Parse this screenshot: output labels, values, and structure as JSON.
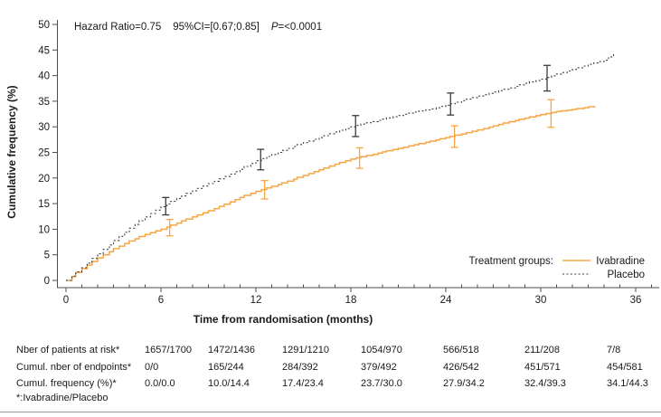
{
  "annotation": {
    "hazard_ratio": "Hazard Ratio=0.75",
    "ci": "95%CI=[0.67;0.85]",
    "p_label": "P",
    "p_value": "=<0.0001"
  },
  "chart_data": {
    "type": "line",
    "subtype": "kaplan-meier-cumulative-incidence",
    "xlabel": "Time from randomisation (months)",
    "ylabel": "Cumulative frequency (%)",
    "xlim": [
      0,
      36
    ],
    "ylim": [
      0,
      50
    ],
    "xticks": [
      0,
      6,
      12,
      18,
      24,
      30,
      36
    ],
    "x_minor_step": 1,
    "yticks": [
      0,
      5,
      10,
      15,
      20,
      25,
      30,
      35,
      40,
      45,
      50
    ],
    "grid": false,
    "legend_title": "Treatment groups:",
    "legend_position": "bottom-right-inside",
    "series": [
      {
        "name": "Ivabradine",
        "color": "#F7A646",
        "style": "solid",
        "x": [
          0,
          1,
          2,
          3,
          4,
          5,
          6,
          7,
          8,
          9,
          10,
          11,
          12,
          13,
          14,
          15,
          16,
          17,
          18,
          19,
          20,
          21,
          22,
          23,
          24,
          25,
          26,
          27,
          28,
          29,
          30,
          31,
          32,
          33.4
        ],
        "y": [
          0,
          2.3,
          4.4,
          6.2,
          7.7,
          9.0,
          10.0,
          11.2,
          12.4,
          13.6,
          14.9,
          16.2,
          17.4,
          18.4,
          19.4,
          20.5,
          21.6,
          22.7,
          23.7,
          24.4,
          25.1,
          25.8,
          26.5,
          27.2,
          27.9,
          28.6,
          29.4,
          30.2,
          31.0,
          31.7,
          32.4,
          33.0,
          33.4,
          34.1
        ]
      },
      {
        "name": "Placebo",
        "color": "#3b3b3b",
        "style": "dotted",
        "x": [
          0,
          1,
          2,
          3,
          4,
          5,
          6,
          7,
          8,
          9,
          10,
          11,
          12,
          13,
          14,
          15,
          16,
          17,
          18,
          19,
          20,
          21,
          22,
          23,
          24,
          25,
          26,
          27,
          28,
          29,
          30,
          31,
          32,
          33,
          34,
          34.6
        ],
        "y": [
          0,
          2.5,
          5.2,
          7.8,
          10.2,
          12.4,
          14.4,
          16.0,
          17.5,
          18.9,
          20.3,
          21.7,
          23.4,
          24.6,
          25.8,
          26.9,
          27.9,
          29.0,
          30.0,
          30.8,
          31.5,
          32.2,
          32.9,
          33.5,
          34.2,
          35.1,
          36.0,
          36.8,
          37.6,
          38.5,
          39.3,
          40.3,
          41.2,
          42.2,
          43.0,
          44.3
        ]
      }
    ],
    "error_bars": [
      {
        "series": "Placebo",
        "color": "#3b3b3b",
        "points": [
          {
            "x": 6.3,
            "low": 12.8,
            "high": 16.2
          },
          {
            "x": 12.3,
            "low": 21.6,
            "high": 25.6
          },
          {
            "x": 18.3,
            "low": 28.1,
            "high": 32.2
          },
          {
            "x": 24.3,
            "low": 32.3,
            "high": 36.6
          },
          {
            "x": 30.4,
            "low": 37.0,
            "high": 42.0
          }
        ]
      },
      {
        "series": "Ivabradine",
        "color": "#F7A646",
        "points": [
          {
            "x": 6.55,
            "low": 8.7,
            "high": 11.9
          },
          {
            "x": 12.55,
            "low": 15.9,
            "high": 19.5
          },
          {
            "x": 18.55,
            "low": 21.9,
            "high": 25.9
          },
          {
            "x": 24.55,
            "low": 26.0,
            "high": 30.2
          },
          {
            "x": 30.65,
            "low": 29.9,
            "high": 35.3
          }
        ]
      }
    ]
  },
  "risk_table": {
    "timepoints_months": [
      0,
      6,
      12,
      18,
      24,
      30,
      36
    ],
    "rows": [
      {
        "label": "Nber of patients at risk*",
        "values": [
          "1657/1700",
          "1472/1436",
          "1291/1210",
          "1054/970",
          "566/518",
          "211/208",
          "7/8"
        ]
      },
      {
        "label": "Cumul. nber of endpoints*",
        "values": [
          "0/0",
          "165/244",
          "284/392",
          "379/492",
          "426/542",
          "451/571",
          "454/581"
        ]
      },
      {
        "label": "Cumul. frequency (%)*",
        "values": [
          "0.0/0.0",
          "10.0/14.4",
          "17.4/23.4",
          "23.7/30.0",
          "27.9/34.2",
          "32.4/39.3",
          "34.1/44.3"
        ]
      }
    ],
    "footnote": "*:Ivabradine/Placebo"
  }
}
